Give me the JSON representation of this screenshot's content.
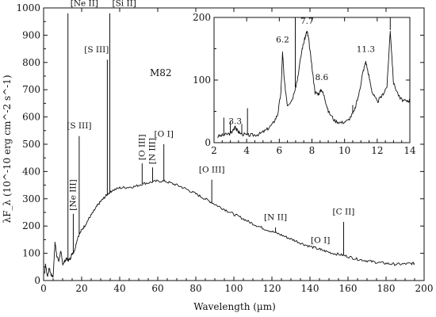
{
  "chart_data": [
    {
      "type": "line",
      "title": "M82",
      "xlabel": "Wavelength (µm)",
      "ylabel": "λF_λ (10^-10 erg cm^-2 s^-1)",
      "xlim": [
        0,
        200
      ],
      "ylim": [
        0,
        1000
      ],
      "x_ticks": [
        "0",
        "20",
        "40",
        "60",
        "80",
        "100",
        "120",
        "140",
        "160",
        "180",
        "200"
      ],
      "y_ticks": [
        "0",
        "100",
        "200",
        "300",
        "400",
        "500",
        "600",
        "700",
        "800",
        "900",
        "1000"
      ],
      "continuum": {
        "x": [
          0.5,
          1,
          2,
          3,
          4,
          5,
          6,
          7,
          8,
          9,
          10,
          11,
          12,
          13,
          14,
          15,
          16,
          18,
          20,
          22,
          24,
          26,
          28,
          30,
          32,
          34,
          36,
          40,
          44,
          48,
          52,
          56,
          60,
          64,
          68,
          72,
          76,
          80,
          84,
          88,
          92,
          96,
          100,
          104,
          108,
          112,
          116,
          120,
          124,
          128,
          132,
          136,
          140,
          144,
          148,
          152,
          156,
          160,
          164,
          168,
          172,
          176,
          180,
          184,
          188,
          192,
          195
        ],
        "y": [
          25,
          60,
          15,
          45,
          20,
          15,
          140,
          90,
          70,
          110,
          60,
          70,
          80,
          75,
          80,
          100,
          105,
          160,
          185,
          205,
          230,
          250,
          272,
          290,
          305,
          320,
          330,
          340,
          342,
          345,
          355,
          360,
          365,
          364,
          355,
          345,
          332,
          318,
          303,
          288,
          272,
          258,
          243,
          230,
          215,
          202,
          190,
          180,
          170,
          158,
          147,
          135,
          125,
          117,
          108,
          100,
          95,
          88,
          80,
          75,
          70,
          66,
          63,
          60,
          60,
          62,
          63
        ]
      },
      "lines": [
        {
          "label": "[Ne II]",
          "x": 12.8,
          "peak": 980
        },
        {
          "label": "[Si II]",
          "x": 34.8,
          "peak": 980
        },
        {
          "label": "[S III]",
          "x": 33.5,
          "peak": 810
        },
        {
          "label": "[S III]",
          "x": 18.7,
          "peak": 530
        },
        {
          "label": "[Ne III]",
          "x": 15.6,
          "peak": 245
        },
        {
          "label": "[O III]",
          "x": 51.8,
          "peak": 430
        },
        {
          "label": "[N III]",
          "x": 57.3,
          "peak": 415
        },
        {
          "label": "[O I]",
          "x": 63.2,
          "peak": 500
        },
        {
          "label": "[O III]",
          "x": 88.4,
          "peak": 370
        },
        {
          "label": "[N II]",
          "x": 121.9,
          "peak": 195
        },
        {
          "label": "[O I]",
          "x": 145.5,
          "peak": 110
        },
        {
          "label": "[C II]",
          "x": 157.7,
          "peak": 215
        }
      ]
    },
    {
      "type": "line",
      "title": "",
      "xlim": [
        2,
        14
      ],
      "ylim": [
        0,
        200
      ],
      "x_ticks": [
        "2",
        "4",
        "6",
        "8",
        "10",
        "12",
        "14"
      ],
      "y_ticks": [
        "0",
        "100",
        "200"
      ],
      "spectrum": {
        "x": [
          2.2,
          2.6,
          3.0,
          3.2,
          3.3,
          3.4,
          3.6,
          4.0,
          4.4,
          4.8,
          5.2,
          5.6,
          5.9,
          6.1,
          6.2,
          6.3,
          6.5,
          6.8,
          7.1,
          7.4,
          7.6,
          7.7,
          7.8,
          8.0,
          8.2,
          8.4,
          8.6,
          8.8,
          9.0,
          9.4,
          9.8,
          10.2,
          10.6,
          10.9,
          11.1,
          11.3,
          11.5,
          11.7,
          12.0,
          12.3,
          12.6,
          12.8,
          13.0,
          13.4,
          13.8,
          14.0
        ],
        "y": [
          10,
          12,
          15,
          20,
          27,
          20,
          15,
          12,
          12,
          14,
          20,
          30,
          45,
          80,
          145,
          100,
          60,
          70,
          100,
          150,
          170,
          178,
          165,
          120,
          80,
          78,
          85,
          70,
          50,
          35,
          32,
          35,
          50,
          80,
          110,
          130,
          105,
          80,
          65,
          75,
          90,
          180,
          95,
          70,
          65,
          68
        ]
      },
      "spikes": [
        {
          "x": 2.6,
          "peak": 40
        },
        {
          "x": 3.0,
          "peak": 35
        },
        {
          "x": 3.7,
          "peak": 30
        },
        {
          "x": 4.05,
          "peak": 55
        },
        {
          "x": 6.98,
          "peak": 200
        },
        {
          "x": 10.5,
          "peak": 60
        },
        {
          "x": 12.8,
          "peak": 200
        }
      ],
      "annotations": [
        {
          "text": "3.3",
          "x": 3.3,
          "y": 25
        },
        {
          "text": "6.2",
          "x": 6.2,
          "y": 155
        },
        {
          "text": "7.7",
          "x": 7.7,
          "y": 185
        },
        {
          "text": "8.6",
          "x": 8.6,
          "y": 95
        },
        {
          "text": "11.3",
          "x": 11.3,
          "y": 140
        }
      ]
    }
  ]
}
